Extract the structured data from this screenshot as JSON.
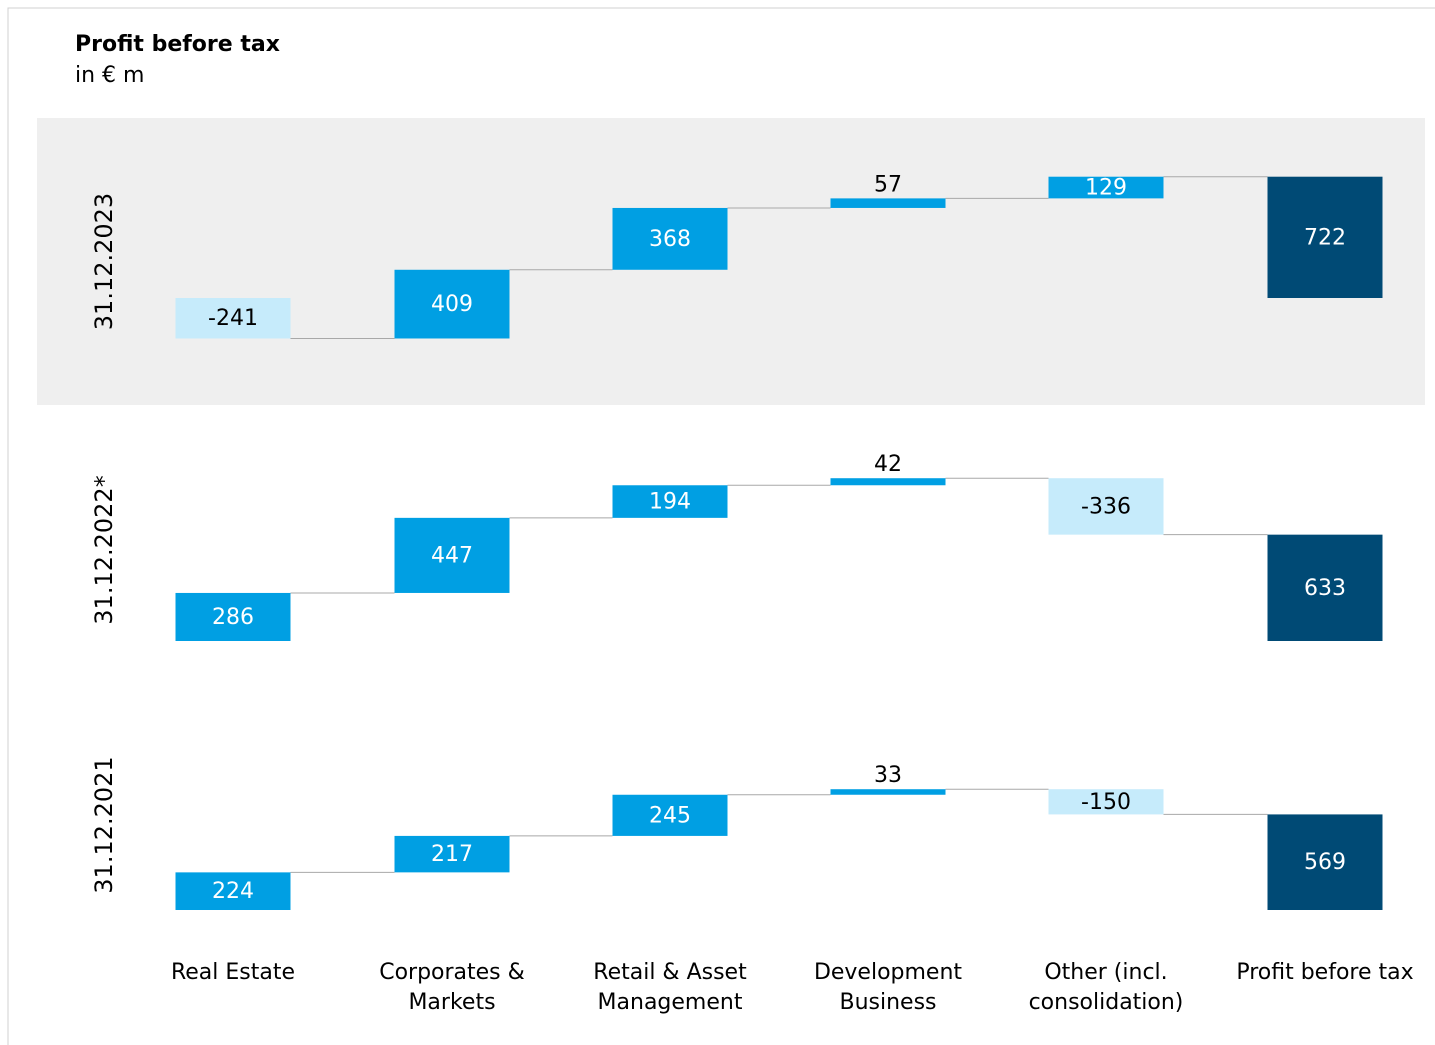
{
  "chart_data": {
    "type": "waterfall",
    "title": "Profit before tax",
    "subtitle": "in € m",
    "categories": [
      "Real Estate",
      "Corporates & Markets",
      "Retail & Asset Management",
      "Development Business",
      "Other (incl. consolidation)",
      "Profit before tax"
    ],
    "colors": {
      "increase": "#009fe3",
      "decrease": "#c6ebfb",
      "total": "#004a75"
    },
    "panels": [
      {
        "label": "31.12.2023",
        "highlighted": true,
        "values": [
          -241,
          409,
          368,
          57,
          129,
          722
        ]
      },
      {
        "label": "31.12.2022*",
        "highlighted": false,
        "values": [
          286,
          447,
          194,
          42,
          -336,
          633
        ]
      },
      {
        "label": "31.12.2021",
        "highlighted": false,
        "values": [
          224,
          217,
          245,
          33,
          -150,
          569
        ]
      }
    ]
  }
}
